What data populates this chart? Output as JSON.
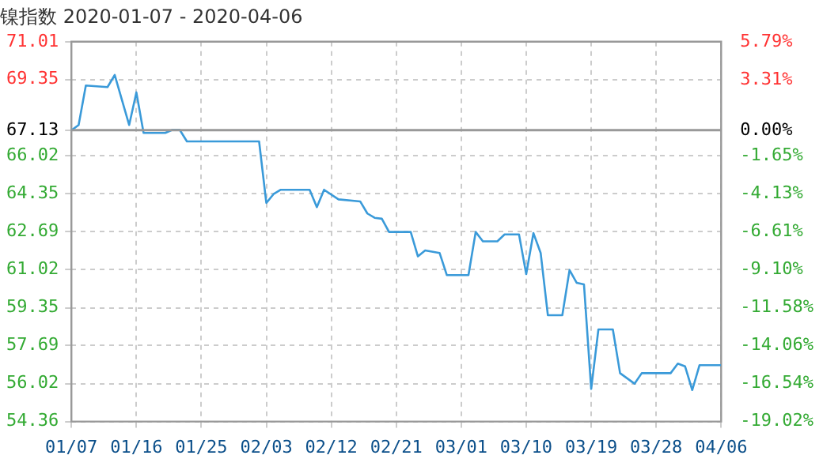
{
  "chart_data": {
    "type": "line",
    "title": "镍指数 2020-01-07 - 2020-04-06",
    "x": [
      "2020-01-07",
      "2020-01-08",
      "2020-01-09",
      "2020-01-12",
      "2020-01-13",
      "2020-01-15",
      "2020-01-16",
      "2020-01-17",
      "2020-01-20",
      "2020-01-21",
      "2020-01-22",
      "2020-01-23",
      "2020-02-02",
      "2020-02-03",
      "2020-02-04",
      "2020-02-05",
      "2020-02-09",
      "2020-02-10",
      "2020-02-11",
      "2020-02-13",
      "2020-02-16",
      "2020-02-17",
      "2020-02-18",
      "2020-02-19",
      "2020-02-20",
      "2020-02-23",
      "2020-02-24",
      "2020-02-25",
      "2020-02-27",
      "2020-02-28",
      "2020-03-02",
      "2020-03-03",
      "2020-03-04",
      "2020-03-06",
      "2020-03-07",
      "2020-03-09",
      "2020-03-10",
      "2020-03-11",
      "2020-03-12",
      "2020-03-13",
      "2020-03-15",
      "2020-03-16",
      "2020-03-17",
      "2020-03-18",
      "2020-03-19",
      "2020-03-20",
      "2020-03-22",
      "2020-03-23",
      "2020-03-25",
      "2020-03-26",
      "2020-03-30",
      "2020-03-31",
      "2020-04-01",
      "2020-04-02",
      "2020-04-03",
      "2020-04-06"
    ],
    "series": [
      {
        "color": "#3a9ad9",
        "values": [
          67.13,
          67.36,
          69.09,
          69.02,
          69.55,
          67.36,
          68.79,
          67.01,
          67.01,
          67.15,
          67.15,
          66.64,
          66.64,
          63.94,
          64.33,
          64.52,
          64.52,
          63.76,
          64.52,
          64.1,
          64.01,
          63.48,
          63.29,
          63.25,
          62.67,
          62.67,
          61.6,
          61.86,
          61.75,
          60.78,
          60.78,
          62.67,
          62.26,
          62.26,
          62.56,
          62.56,
          60.82,
          62.62,
          61.75,
          59.02,
          59.02,
          61.0,
          60.44,
          60.37,
          55.79,
          58.4,
          58.4,
          56.48,
          56.02,
          56.48,
          56.48,
          56.9,
          56.78,
          55.74,
          56.83,
          56.83
        ]
      }
    ],
    "xlim": [
      "2020-01-07",
      "2020-04-06"
    ],
    "xticks": [
      {
        "value": "2020-01-07",
        "label": "01/07"
      },
      {
        "value": "2020-01-16",
        "label": "01/16"
      },
      {
        "value": "2020-01-25",
        "label": "01/25"
      },
      {
        "value": "2020-02-03",
        "label": "02/03"
      },
      {
        "value": "2020-02-12",
        "label": "02/12"
      },
      {
        "value": "2020-02-21",
        "label": "02/21"
      },
      {
        "value": "2020-03-01",
        "label": "03/01"
      },
      {
        "value": "2020-03-10",
        "label": "03/10"
      },
      {
        "value": "2020-03-19",
        "label": "03/19"
      },
      {
        "value": "2020-03-28",
        "label": "03/28"
      },
      {
        "value": "2020-04-06",
        "label": "04/06"
      }
    ],
    "ylim": [
      54.36,
      71.01
    ],
    "yticks": [
      54.36,
      56.02,
      57.69,
      59.35,
      61.02,
      62.69,
      64.35,
      66.02,
      67.13,
      69.35,
      71.01
    ],
    "y2lim": [
      -19.02,
      5.79
    ],
    "y2ticks": [
      {
        "value": -19.02,
        "label": "-19.02%"
      },
      {
        "value": -16.54,
        "label": "-16.54%"
      },
      {
        "value": -14.06,
        "label": "-14.06%"
      },
      {
        "value": -11.58,
        "label": "-11.58%"
      },
      {
        "value": -9.1,
        "label": "-9.10%"
      },
      {
        "value": -6.61,
        "label": "-6.61%"
      },
      {
        "value": -4.13,
        "label": "-4.13%"
      },
      {
        "value": -1.65,
        "label": "-1.65%"
      },
      {
        "value": 0,
        "label": "0.00%"
      },
      {
        "value": 3.31,
        "label": "3.31%"
      },
      {
        "value": 5.79,
        "label": "5.79%"
      }
    ],
    "ref_lines": [
      {
        "axis": "y",
        "value": 67.13,
        "color": "#999999"
      }
    ],
    "grid": true,
    "legend": false,
    "marker": "none"
  }
}
